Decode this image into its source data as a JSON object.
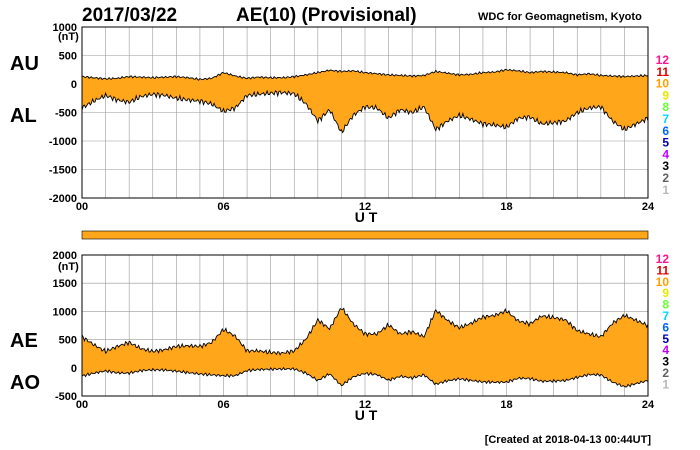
{
  "header": {
    "date": "2017/03/22",
    "index_title": "AE(10) (Provisional)",
    "source": "WDC for Geomagnetism, Kyoto"
  },
  "footer": {
    "created": "[Created at 2018-04-13 00:44UT]"
  },
  "colors": {
    "fill": "#ffa61a",
    "line": "#000000",
    "grid": "#9a9a9a"
  },
  "legend": {
    "stations": [
      "12",
      "11",
      "10",
      "9",
      "8",
      "7",
      "6",
      "5",
      "4",
      "3",
      "2",
      "1"
    ],
    "colors": [
      "#ff1493",
      "#e00000",
      "#ff9f00",
      "#e8e800",
      "#66ff33",
      "#00d8ff",
      "#0066ff",
      "#0000b0",
      "#c000ff",
      "#000000",
      "#606060",
      "#b8b8b8"
    ]
  },
  "chart_data": [
    {
      "type": "area",
      "panel": "AU/AL",
      "series_labels": [
        "AU",
        "AL"
      ],
      "unit": "(nT)",
      "xlabel": "U T",
      "xlim": [
        0,
        24
      ],
      "xticks": [
        "00",
        "06",
        "12",
        "18",
        "24"
      ],
      "ylim": [
        -2000,
        1000
      ],
      "yticks": [
        "1000",
        "500",
        "0",
        "-500",
        "-1000",
        "-1500",
        "-2000"
      ],
      "grid": true,
      "x_hours": [
        0,
        0.5,
        1,
        1.5,
        2,
        2.5,
        3,
        3.5,
        4,
        4.5,
        5,
        5.5,
        6,
        6.5,
        7,
        7.5,
        8,
        8.5,
        9,
        9.5,
        10,
        10.5,
        11,
        11.5,
        12,
        12.5,
        13,
        13.5,
        14,
        14.5,
        15,
        15.5,
        16,
        16.5,
        17,
        17.5,
        18,
        18.5,
        19,
        19.5,
        20,
        20.5,
        21,
        21.5,
        22,
        22.5,
        23,
        23.5,
        24
      ],
      "series": [
        {
          "name": "AU",
          "values": [
            130,
            110,
            90,
            100,
            130,
            120,
            110,
            120,
            130,
            110,
            80,
            100,
            200,
            140,
            100,
            120,
            110,
            110,
            130,
            160,
            200,
            240,
            220,
            230,
            200,
            180,
            160,
            150,
            140,
            150,
            220,
            190,
            160,
            170,
            200,
            210,
            250,
            230,
            200,
            220,
            210,
            200,
            160,
            180,
            150,
            140,
            130,
            140,
            150
          ]
        },
        {
          "name": "AL",
          "values": [
            -420,
            -300,
            -200,
            -280,
            -320,
            -220,
            -180,
            -200,
            -250,
            -280,
            -300,
            -350,
            -480,
            -420,
            -200,
            -180,
            -160,
            -150,
            -170,
            -350,
            -650,
            -450,
            -850,
            -550,
            -400,
            -420,
            -600,
            -450,
            -500,
            -400,
            -800,
            -650,
            -550,
            -620,
            -700,
            -720,
            -760,
            -600,
            -580,
            -700,
            -680,
            -650,
            -500,
            -420,
            -400,
            -650,
            -800,
            -700,
            -600
          ]
        }
      ]
    },
    {
      "type": "area",
      "panel": "AE/AO",
      "series_labels": [
        "AE",
        "AO"
      ],
      "unit": "(nT)",
      "xlabel": "U T",
      "xlim": [
        0,
        24
      ],
      "xticks": [
        "00",
        "06",
        "12",
        "18",
        "24"
      ],
      "ylim": [
        -500,
        2000
      ],
      "yticks": [
        "2000",
        "1500",
        "1000",
        "500",
        "0",
        "-500"
      ],
      "grid": true,
      "x_hours": [
        0,
        0.5,
        1,
        1.5,
        2,
        2.5,
        3,
        3.5,
        4,
        4.5,
        5,
        5.5,
        6,
        6.5,
        7,
        7.5,
        8,
        8.5,
        9,
        9.5,
        10,
        10.5,
        11,
        11.5,
        12,
        12.5,
        13,
        13.5,
        14,
        14.5,
        15,
        15.5,
        16,
        16.5,
        17,
        17.5,
        18,
        18.5,
        19,
        19.5,
        20,
        20.5,
        21,
        21.5,
        22,
        22.5,
        23,
        23.5,
        24
      ],
      "series": [
        {
          "name": "AE",
          "values": [
            550,
            410,
            290,
            380,
            450,
            340,
            290,
            320,
            380,
            390,
            380,
            450,
            680,
            560,
            300,
            300,
            270,
            260,
            300,
            510,
            850,
            690,
            1070,
            780,
            600,
            600,
            760,
            600,
            640,
            550,
            1020,
            840,
            710,
            790,
            900,
            930,
            1010,
            830,
            780,
            920,
            890,
            850,
            660,
            600,
            550,
            790,
            930,
            840,
            750
          ]
        },
        {
          "name": "AO",
          "values": [
            -145,
            -95,
            -55,
            -90,
            -95,
            -50,
            -35,
            -40,
            -60,
            -85,
            -110,
            -125,
            -140,
            -140,
            -50,
            -30,
            -25,
            -20,
            -20,
            -95,
            -225,
            -105,
            -315,
            -160,
            -100,
            -120,
            -220,
            -150,
            -180,
            -125,
            -290,
            -230,
            -195,
            -225,
            -250,
            -255,
            -255,
            -185,
            -190,
            -240,
            -235,
            -225,
            -170,
            -120,
            -125,
            -255,
            -335,
            -280,
            -225
          ]
        }
      ]
    }
  ]
}
